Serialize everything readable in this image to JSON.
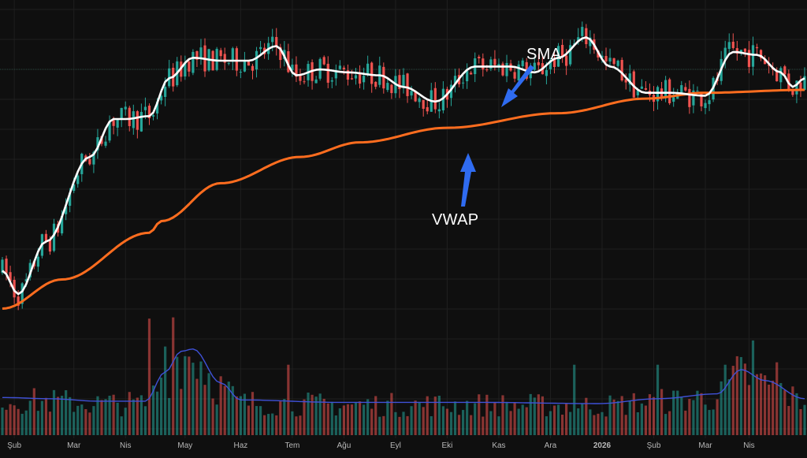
{
  "theme": {
    "background": "#0f0f0f",
    "grid": "#1f1f1f",
    "up_color": "#26a69a",
    "down_color": "#ef5350",
    "sma_color": "#ffffff",
    "vwap_color": "#ff6d1f",
    "volume_ma_color": "#3f51d8",
    "arrow_color": "#2f6bf0",
    "axis_text": "#b8b8b8"
  },
  "annotations": {
    "sma": "SMA",
    "vwap": "VWAP"
  },
  "chart_data": {
    "type": "candlestick",
    "xlabel": "",
    "ylabel": "",
    "grid": true,
    "x_tick_labels": [
      "Şub",
      "Mar",
      "Nis",
      "May",
      "Haz",
      "Tem",
      "Ağu",
      "Eyl",
      "Eki",
      "Kas",
      "Ara",
      "2026",
      "Şub",
      "Mar",
      "Nis"
    ],
    "ylim": [
      0,
      100
    ],
    "volume_ylim": [
      0,
      100
    ],
    "sma_anchors": [
      [
        0,
        18
      ],
      [
        4,
        10
      ],
      [
        11,
        28
      ],
      [
        22,
        57
      ],
      [
        28,
        70
      ],
      [
        31,
        70
      ],
      [
        37,
        71
      ],
      [
        42,
        84
      ],
      [
        48,
        91
      ],
      [
        55,
        90
      ],
      [
        62,
        90
      ],
      [
        69,
        95
      ],
      [
        74,
        85
      ],
      [
        80,
        87
      ],
      [
        87,
        86
      ],
      [
        95,
        85
      ],
      [
        101,
        81
      ],
      [
        109,
        76
      ],
      [
        119,
        88
      ],
      [
        128,
        88
      ],
      [
        134,
        86
      ],
      [
        140,
        91
      ],
      [
        147,
        98
      ],
      [
        153,
        88
      ],
      [
        162,
        79
      ],
      [
        168,
        79
      ],
      [
        177,
        78
      ],
      [
        184,
        93
      ],
      [
        190,
        92
      ],
      [
        196,
        86
      ],
      [
        199,
        81
      ],
      [
        202,
        84
      ]
    ],
    "vwap_anchors": [
      [
        0,
        5
      ],
      [
        15,
        15
      ],
      [
        37,
        31
      ],
      [
        40,
        35
      ],
      [
        55,
        48
      ],
      [
        75,
        57
      ],
      [
        90,
        62
      ],
      [
        112,
        67
      ],
      [
        140,
        72
      ],
      [
        162,
        77
      ],
      [
        177,
        79
      ],
      [
        202,
        80
      ]
    ],
    "volume_ma_anchors": [
      [
        0,
        31
      ],
      [
        12,
        30
      ],
      [
        24,
        28
      ],
      [
        36,
        28
      ],
      [
        41,
        52
      ],
      [
        45,
        69
      ],
      [
        48,
        71
      ],
      [
        55,
        43
      ],
      [
        60,
        29
      ],
      [
        85,
        27
      ],
      [
        120,
        27
      ],
      [
        150,
        26
      ],
      [
        165,
        30
      ],
      [
        180,
        34
      ],
      [
        186,
        54
      ],
      [
        192,
        45
      ],
      [
        202,
        30
      ]
    ],
    "volume_spikes": [
      [
        37,
        96
      ],
      [
        41,
        73
      ],
      [
        43,
        97
      ],
      [
        72,
        58
      ],
      [
        144,
        58
      ],
      [
        165,
        58
      ],
      [
        182,
        58
      ],
      [
        189,
        78
      ],
      [
        195,
        60
      ]
    ]
  }
}
